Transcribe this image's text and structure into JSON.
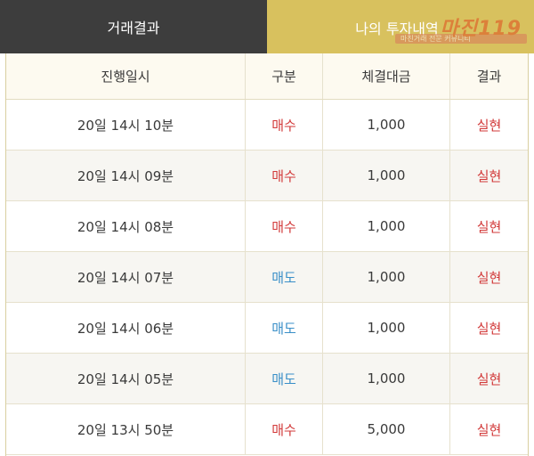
{
  "tabs": [
    {
      "label": "거래결과",
      "active": true
    },
    {
      "label": "나의 투자내역",
      "active": false
    }
  ],
  "watermark": {
    "logo": "마진119",
    "caption": "마진거래 전문 커뮤니티"
  },
  "table": {
    "columns": [
      "진행일시",
      "구분",
      "체결대금",
      "결과"
    ],
    "rows": [
      {
        "time": "20일 14시 10분",
        "type": "매수",
        "amount": "1,000",
        "result": "실현"
      },
      {
        "time": "20일 14시 09분",
        "type": "매수",
        "amount": "1,000",
        "result": "실현"
      },
      {
        "time": "20일 14시 08분",
        "type": "매수",
        "amount": "1,000",
        "result": "실현"
      },
      {
        "time": "20일 14시 07분",
        "type": "매도",
        "amount": "1,000",
        "result": "실현"
      },
      {
        "time": "20일 14시 06분",
        "type": "매도",
        "amount": "1,000",
        "result": "실현"
      },
      {
        "time": "20일 14시 05분",
        "type": "매도",
        "amount": "1,000",
        "result": "실현"
      },
      {
        "time": "20일 13시 50분",
        "type": "매수",
        "amount": "5,000",
        "result": "실현"
      }
    ]
  },
  "colors": {
    "tab_active_bg": "#3d3d3d",
    "tab_inactive_bg": "#d8c15e",
    "buy": "#d23a3a",
    "sell": "#3a8fc8",
    "result": "#d23a3a"
  }
}
